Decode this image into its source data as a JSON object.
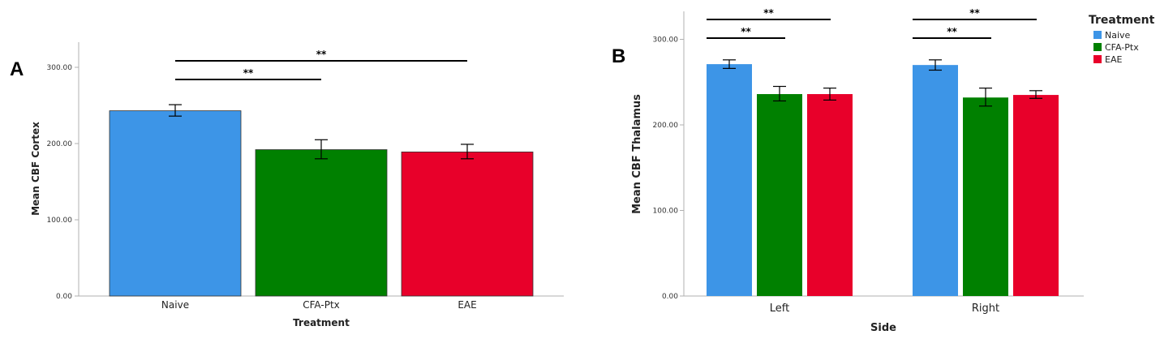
{
  "colors": {
    "Naive": "#3d95e7",
    "CFA-Ptx": "#008000",
    "EAE": "#e8002a"
  },
  "chart_data": [
    {
      "panel_label": "A",
      "type": "bar",
      "categories": [
        "Naive",
        "CFA-Ptx",
        "EAE"
      ],
      "values": [
        243,
        192,
        189
      ],
      "error": [
        [
          236,
          251
        ],
        [
          180,
          205
        ],
        [
          180,
          199
        ]
      ],
      "xlabel": "Treatment",
      "ylabel": "Mean CBF Cortex",
      "ylim": [
        0,
        330
      ],
      "yticks": [
        "0.00",
        "100.00",
        "200.00",
        "300.00"
      ],
      "significance": [
        {
          "from": "Naive",
          "to": "CFA-Ptx",
          "label": "**"
        },
        {
          "from": "Naive",
          "to": "EAE",
          "label": "**"
        }
      ]
    },
    {
      "panel_label": "B",
      "type": "bar",
      "categories": [
        "Left",
        "Right"
      ],
      "series": [
        {
          "name": "Naive",
          "values": [
            271,
            270
          ],
          "error": [
            [
              266,
              276
            ],
            [
              264,
              276
            ]
          ]
        },
        {
          "name": "CFA-Ptx",
          "values": [
            236,
            232
          ],
          "error": [
            [
              228,
              245
            ],
            [
              222,
              243
            ]
          ]
        },
        {
          "name": "EAE",
          "values": [
            236,
            235
          ],
          "error": [
            [
              229,
              243
            ],
            [
              231,
              240
            ]
          ]
        }
      ],
      "xlabel": "Side",
      "ylabel": "Mean CBF Thalamus",
      "ylim": [
        0,
        335
      ],
      "yticks": [
        "0.00",
        "100.00",
        "200.00",
        "300.00"
      ],
      "legend_title": "Treatment",
      "legend_position": "top-right outside",
      "significance": [
        {
          "group": "Left",
          "from": "Naive",
          "to": "CFA-Ptx",
          "label": "**"
        },
        {
          "group": "Left",
          "from": "Naive",
          "to": "EAE",
          "label": "**"
        },
        {
          "group": "Right",
          "from": "Naive",
          "to": "CFA-Ptx",
          "label": "**"
        },
        {
          "group": "Right",
          "from": "Naive",
          "to": "EAE",
          "label": "**"
        }
      ]
    }
  ]
}
